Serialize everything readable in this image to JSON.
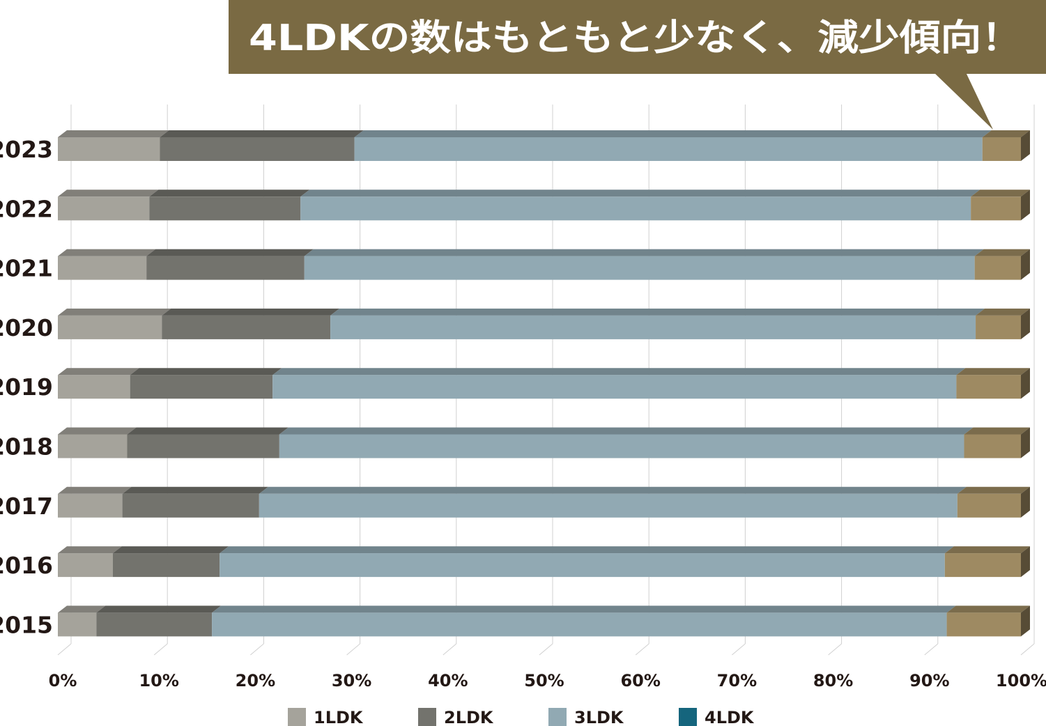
{
  "callout": {
    "text": "4LDKの数はもともと少なく、減少傾向！"
  },
  "chart_data": {
    "type": "bar",
    "orientation": "horizontal",
    "stacked": true,
    "normalized_percent": true,
    "style": "3d",
    "title": "",
    "xlabel": "",
    "ylabel": "",
    "xlim": [
      0,
      100
    ],
    "x_ticks": [
      "0%",
      "10%",
      "20%",
      "30%",
      "40%",
      "50%",
      "60%",
      "70%",
      "80%",
      "90%",
      "100%"
    ],
    "grid": true,
    "legend_position": "bottom",
    "categories": [
      "2023",
      "2022",
      "2021",
      "2020",
      "2019",
      "2018",
      "2017",
      "2016",
      "2015"
    ],
    "series": [
      {
        "name": "1LDK",
        "color": "#a5a39b",
        "values": [
          10.6,
          9.5,
          9.2,
          10.8,
          7.5,
          7.2,
          6.7,
          5.7,
          4.0
        ]
      },
      {
        "name": "2LDK",
        "color": "#73736d",
        "values": [
          20.2,
          15.7,
          16.4,
          17.5,
          14.8,
          15.8,
          14.2,
          11.1,
          12.0
        ]
      },
      {
        "name": "3LDK",
        "color": "#91a9b3",
        "values": [
          65.2,
          69.6,
          69.6,
          67.0,
          71.0,
          71.1,
          72.5,
          75.3,
          76.3
        ]
      },
      {
        "name": "4LDK",
        "color": "#15657d",
        "values": [
          4.0,
          5.2,
          4.8,
          4.7,
          6.7,
          5.9,
          6.6,
          7.9,
          7.7
        ]
      }
    ],
    "plotted_fourth_segment_color": "#9e8a62"
  }
}
